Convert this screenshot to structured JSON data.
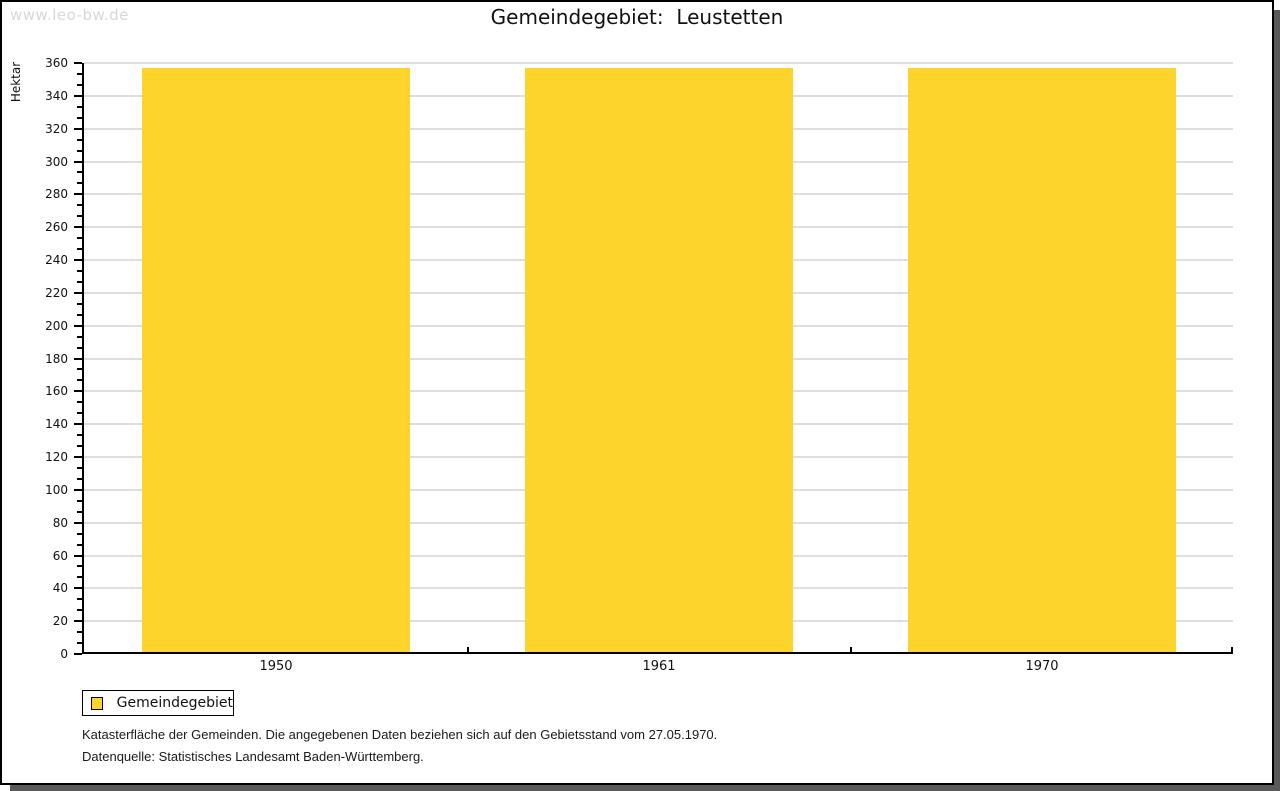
{
  "window": {
    "watermark": "www.leo-bw.de"
  },
  "chart_data": {
    "type": "bar",
    "title": "Gemeindegebiet:  Leustetten",
    "ylabel": "Hektar",
    "xlabel": "",
    "categories": [
      "1950",
      "1961",
      "1970"
    ],
    "series": [
      {
        "name": "Gemeindegebiet",
        "values": [
          357,
          357,
          357
        ],
        "color": "#FCD42C"
      }
    ],
    "ylim": [
      0,
      360
    ],
    "yticks": [
      0,
      20,
      40,
      60,
      80,
      100,
      120,
      140,
      160,
      180,
      200,
      220,
      240,
      260,
      280,
      300,
      320,
      340,
      360
    ],
    "minor_ticks_between_majors": 2,
    "grid": true,
    "legend_position": "bottom-left"
  },
  "legend": {
    "label": "Gemeindegebiet"
  },
  "footer": {
    "line1": "Katasterfläche der Gemeinden. Die angegebenen Daten beziehen sich auf den Gebietsstand vom 27.05.1970.",
    "line2": "Datenquelle: Statistisches Landesamt Baden-Württemberg."
  },
  "colors": {
    "bar": "#FCD42C",
    "grid": "#DEDEDE",
    "axis": "#000000",
    "watermark": "#D8D8D8",
    "shadow": "#5A5A5A",
    "title_text": "#111111"
  }
}
